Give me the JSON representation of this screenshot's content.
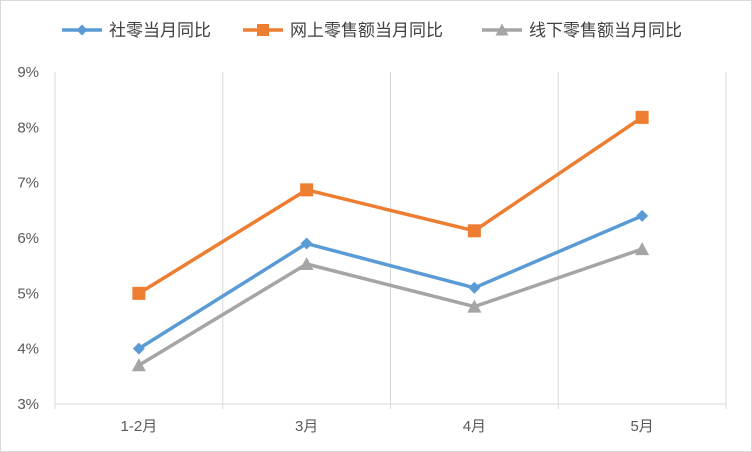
{
  "chart_data": {
    "type": "line",
    "title": "",
    "xlabel": "",
    "ylabel": "",
    "categories": [
      "1-2月",
      "3月",
      "4月",
      "5月"
    ],
    "ylim": [
      3,
      9
    ],
    "yticks": [
      3,
      4,
      5,
      6,
      7,
      8,
      9
    ],
    "ytick_format": "percent",
    "grid": "vertical",
    "legend_position": "top",
    "series": [
      {
        "name": "社零当月同比",
        "values": [
          4.0,
          5.9,
          5.1,
          6.4
        ],
        "color": "#5b9bd5",
        "marker": "diamond"
      },
      {
        "name": "网上零售额当月同比",
        "values": [
          5.0,
          6.87,
          6.13,
          8.18
        ],
        "color": "#ed7d31",
        "marker": "square"
      },
      {
        "name": "线下零售额当月同比",
        "values": [
          3.7,
          5.53,
          4.76,
          5.8
        ],
        "color": "#a5a5a5",
        "marker": "triangle"
      }
    ]
  }
}
